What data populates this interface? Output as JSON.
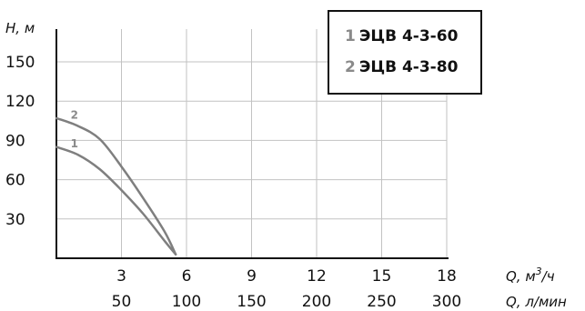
{
  "chart_data": {
    "type": "line",
    "y_axis": {
      "label": "H, м",
      "ticks": [
        30,
        60,
        90,
        120,
        150
      ],
      "range": [
        0,
        175
      ]
    },
    "x_axis_primary": {
      "label": "Q, м³/ч",
      "label_base": "Q, м",
      "label_sup": "3",
      "label_tail": "/ч",
      "ticks": [
        3,
        6,
        9,
        12,
        15,
        18
      ],
      "range": [
        0,
        18
      ]
    },
    "x_axis_secondary": {
      "label": "Q, л/мин",
      "ticks": [
        50,
        100,
        150,
        200,
        250,
        300
      ]
    },
    "grid": true,
    "series": [
      {
        "id": "1",
        "name": "ЭЦВ 4-3-60",
        "curve_label": "1",
        "color": "#7f7f7f",
        "points": [
          [
            0,
            85
          ],
          [
            1,
            79
          ],
          [
            2,
            68
          ],
          [
            3,
            52
          ],
          [
            4,
            34
          ],
          [
            5,
            13
          ],
          [
            5.5,
            3
          ]
        ]
      },
      {
        "id": "2",
        "name": "ЭЦВ 4-3-80",
        "curve_label": "2",
        "color": "#7f7f7f",
        "points": [
          [
            0,
            107
          ],
          [
            1,
            101
          ],
          [
            2,
            91
          ],
          [
            3,
            70
          ],
          [
            4,
            46
          ],
          [
            5,
            20
          ],
          [
            5.5,
            3
          ]
        ]
      }
    ],
    "legend": {
      "position": "top-right",
      "entries": [
        {
          "number": "1",
          "label": "ЭЦВ 4-3-60"
        },
        {
          "number": "2",
          "label": "ЭЦВ 4-3-80"
        }
      ]
    }
  }
}
